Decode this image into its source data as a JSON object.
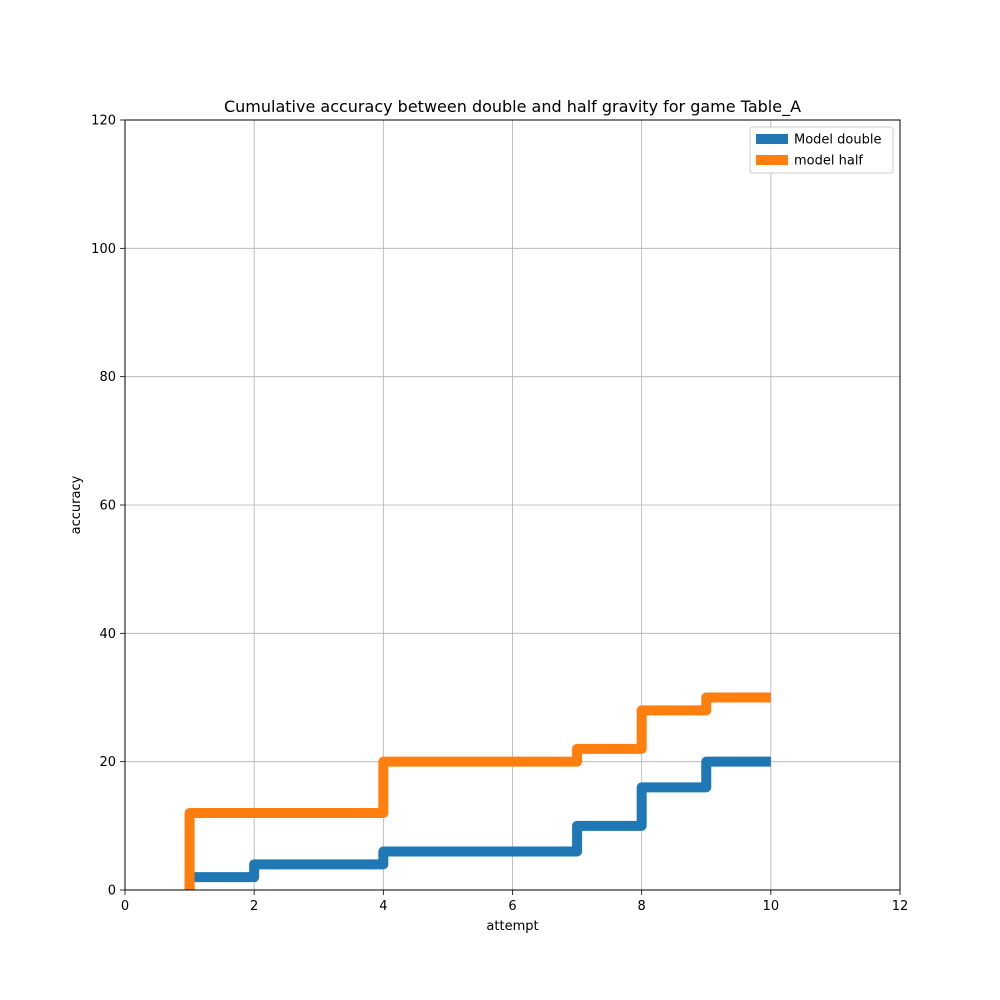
{
  "chart_data": {
    "type": "line",
    "step": "post",
    "title": "Cumulative accuracy between double and half gravity for game Table_A",
    "xlabel": "attempt",
    "ylabel": "accuracy",
    "xlim": [
      0,
      12
    ],
    "ylim": [
      0,
      120
    ],
    "xticks": [
      0,
      2,
      4,
      6,
      8,
      10,
      12
    ],
    "yticks": [
      0,
      20,
      40,
      60,
      80,
      100,
      120
    ],
    "grid": true,
    "legend_position": "upper right",
    "series": [
      {
        "name": "Model double",
        "color": "#1f77b4",
        "x": [
          1,
          1,
          2,
          4,
          7,
          8,
          9,
          10
        ],
        "y": [
          0,
          2,
          4,
          6,
          10,
          16,
          20,
          20
        ]
      },
      {
        "name": "model half",
        "color": "#ff7f0e",
        "x": [
          1,
          1,
          4,
          7,
          8,
          9,
          10
        ],
        "y": [
          0,
          12,
          20,
          22,
          28,
          30,
          30
        ]
      }
    ]
  }
}
